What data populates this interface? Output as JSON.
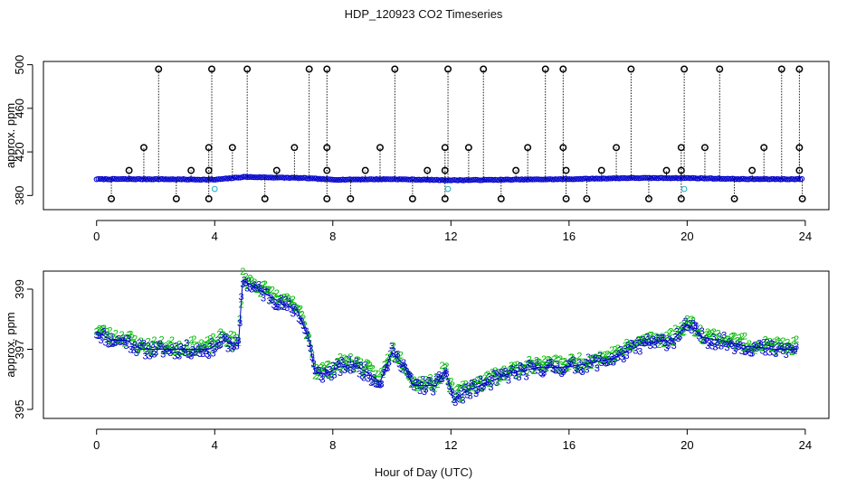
{
  "page": {
    "title": "HDP_120923  CO2 Timeseries",
    "xlabel": "Hour of Day (UTC)"
  },
  "colors": {
    "instrument": "#0000cc",
    "reference": "#00bb00",
    "spike": "#000000",
    "flagged": "#33bbcc",
    "line": "#0000cc"
  },
  "chart_data": [
    {
      "type": "scatter",
      "title": "HDP_120923  CO2 Timeseries",
      "xlabel": "Hour of Day (UTC)",
      "ylabel": "approx. ppm",
      "xlim": [
        -1.8,
        24.8
      ],
      "ylim": [
        367,
        503
      ],
      "xticks": [
        0,
        4,
        8,
        12,
        16,
        20,
        24
      ],
      "xtick_labels": [
        "0",
        "4",
        "8",
        "12",
        "16",
        "20",
        "24"
      ],
      "yticks": [
        380,
        420,
        460,
        500
      ],
      "ytick_labels": [
        "380",
        "420",
        "460",
        "500"
      ],
      "baseline": [
        [
          0,
          395
        ],
        [
          2,
          395
        ],
        [
          4,
          394.5
        ],
        [
          5,
          397
        ],
        [
          6,
          396.5
        ],
        [
          7,
          396
        ],
        [
          8,
          394.5
        ],
        [
          10,
          395
        ],
        [
          12,
          394
        ],
        [
          14,
          394.5
        ],
        [
          16,
          395
        ],
        [
          18,
          396
        ],
        [
          20,
          396
        ],
        [
          22,
          395
        ],
        [
          24,
          395
        ]
      ],
      "spikes_high": [
        2.1,
        3.9,
        5.1,
        7.2,
        7.8,
        10.1,
        11.9,
        13.1,
        15.2,
        15.8,
        18.1,
        19.9,
        21.1,
        23.2,
        23.8
      ],
      "spikes_mid": [
        1.6,
        3.8,
        4.6,
        6.7,
        7.8,
        9.6,
        11.8,
        12.6,
        14.6,
        15.8,
        17.6,
        19.8,
        20.6,
        22.6,
        23.8
      ],
      "spikes_upper": [
        1.1,
        3.2,
        3.8,
        6.1,
        7.8,
        9.1,
        11.2,
        11.8,
        14.2,
        15.9,
        17.1,
        19.3,
        19.8,
        22.2,
        23.8
      ],
      "spikes_low": [
        0.5,
        2.7,
        3.8,
        5.7,
        7.8,
        8.6,
        10.7,
        11.8,
        13.7,
        15.9,
        16.6,
        18.7,
        19.8,
        21.6,
        23.9
      ],
      "high_value": 496,
      "mid_value": 424,
      "upper_value": 403,
      "low_value": 377,
      "flagged": [
        [
          4.0,
          386
        ],
        [
          11.9,
          386
        ],
        [
          19.9,
          386
        ]
      ]
    },
    {
      "type": "scatter",
      "ylabel": "approx. ppm",
      "xlim": [
        -1.8,
        24.8
      ],
      "ylim": [
        394.7,
        399.6
      ],
      "xticks": [
        0,
        4,
        8,
        12,
        16,
        20,
        24
      ],
      "xtick_labels": [
        "0",
        "4",
        "8",
        "12",
        "16",
        "20",
        "24"
      ],
      "yticks": [
        395,
        397,
        399
      ],
      "ytick_labels": [
        "395",
        "397",
        "399"
      ],
      "series": [
        {
          "name": "3",
          "marker": "3",
          "color": "#0000cc"
        },
        {
          "name": "2",
          "marker": "2",
          "color": "#00bb00"
        }
      ],
      "profile": [
        [
          0,
          397.6
        ],
        [
          0.5,
          397.3
        ],
        [
          1.0,
          397.3
        ],
        [
          1.5,
          397.0
        ],
        [
          2.0,
          397.0
        ],
        [
          3.0,
          397.0
        ],
        [
          3.8,
          397.0
        ],
        [
          4.3,
          397.3
        ],
        [
          4.8,
          397.1
        ],
        [
          4.95,
          399.3
        ],
        [
          5.3,
          399.1
        ],
        [
          5.8,
          398.8
        ],
        [
          6.3,
          398.5
        ],
        [
          6.8,
          398.3
        ],
        [
          7.2,
          397.3
        ],
        [
          7.4,
          396.2
        ],
        [
          7.8,
          396.2
        ],
        [
          8.2,
          396.4
        ],
        [
          8.7,
          396.5
        ],
        [
          9.2,
          396.2
        ],
        [
          9.6,
          395.9
        ],
        [
          10.0,
          396.9
        ],
        [
          10.4,
          396.5
        ],
        [
          10.7,
          395.8
        ],
        [
          11.0,
          395.8
        ],
        [
          11.5,
          395.8
        ],
        [
          11.8,
          396.3
        ],
        [
          12.1,
          395.3
        ],
        [
          12.5,
          395.6
        ],
        [
          13.0,
          395.8
        ],
        [
          14.0,
          396.2
        ],
        [
          15.0,
          396.4
        ],
        [
          15.8,
          396.4
        ],
        [
          16.5,
          396.5
        ],
        [
          17.5,
          396.7
        ],
        [
          18.5,
          397.2
        ],
        [
          19.5,
          397.3
        ],
        [
          20.0,
          397.8
        ],
        [
          20.3,
          397.6
        ],
        [
          20.5,
          397.4
        ],
        [
          21.0,
          397.3
        ],
        [
          22.0,
          397.1
        ],
        [
          23.0,
          397.0
        ],
        [
          23.7,
          397.0
        ]
      ]
    }
  ]
}
